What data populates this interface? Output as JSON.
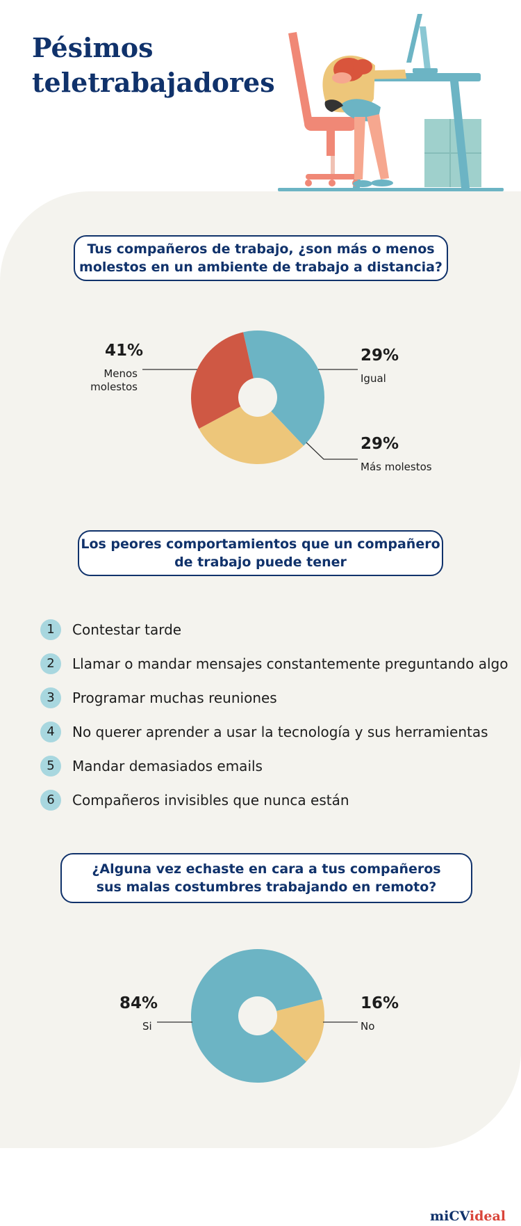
{
  "title": {
    "line1": "Pésimos",
    "line2": "teletrabajadores"
  },
  "colors": {
    "navy": "#10326b",
    "teal": "#6cb4c4",
    "yellow": "#edc67a",
    "red": "#cf5844",
    "panel": "#f4f3ee",
    "badge": "#a8d7df",
    "logo_red": "#d9453a"
  },
  "question1": {
    "line1": "Tus compañeros de trabajo, ¿son más o menos",
    "line2": "molestos en un ambiente de trabajo a distancia?"
  },
  "question2": {
    "line1": "Los peores comportamientos que un compañero",
    "line2": "de trabajo puede tener"
  },
  "behaviors": [
    {
      "num": "1",
      "text": "Contestar tarde"
    },
    {
      "num": "2",
      "text": "Llamar o mandar mensajes constantemente preguntando algo"
    },
    {
      "num": "3",
      "text": "Programar muchas reuniones"
    },
    {
      "num": "4",
      "text": "No querer aprender a usar la tecnología y sus herramientas"
    },
    {
      "num": "5",
      "text": "Mandar demasiados emails"
    },
    {
      "num": "6",
      "text": "Compañeros invisibles que nunca están"
    }
  ],
  "question3": {
    "line1": "¿Alguna vez echaste en cara a tus compañeros",
    "line2": "sus malas costumbres trabajando en remoto?"
  },
  "chart_data": [
    {
      "type": "pie",
      "title": "Tus compañeros de trabajo, ¿son más o menos molestos en un ambiente de trabajo a distancia?",
      "slices": [
        {
          "label": "Menos molestos",
          "value": 41,
          "display": "41%",
          "color": "#6cb4c4"
        },
        {
          "label": "Igual",
          "value": 29,
          "display": "29%",
          "color": "#edc67a"
        },
        {
          "label": "Más molestos",
          "value": 29,
          "display": "29%",
          "color": "#cf5844"
        }
      ]
    },
    {
      "type": "pie",
      "title": "¿Alguna vez echaste en cara a tus compañeros sus malas costumbres trabajando en remoto?",
      "slices": [
        {
          "label": "Si",
          "value": 84,
          "display": "84%",
          "color": "#6cb4c4"
        },
        {
          "label": "No",
          "value": 16,
          "display": "16%",
          "color": "#edc67a"
        }
      ]
    }
  ],
  "pie1_labels": {
    "menos_pct": "41%",
    "menos_l1": "Menos",
    "menos_l2": "molestos",
    "igual_pct": "29%",
    "igual_label": "Igual",
    "mas_pct": "29%",
    "mas_label": "Más molestos"
  },
  "pie2_labels": {
    "si_pct": "84%",
    "si_label": "Si",
    "no_pct": "16%",
    "no_label": "No"
  },
  "logo": {
    "part1": "miCV",
    "part2": "ideal"
  }
}
